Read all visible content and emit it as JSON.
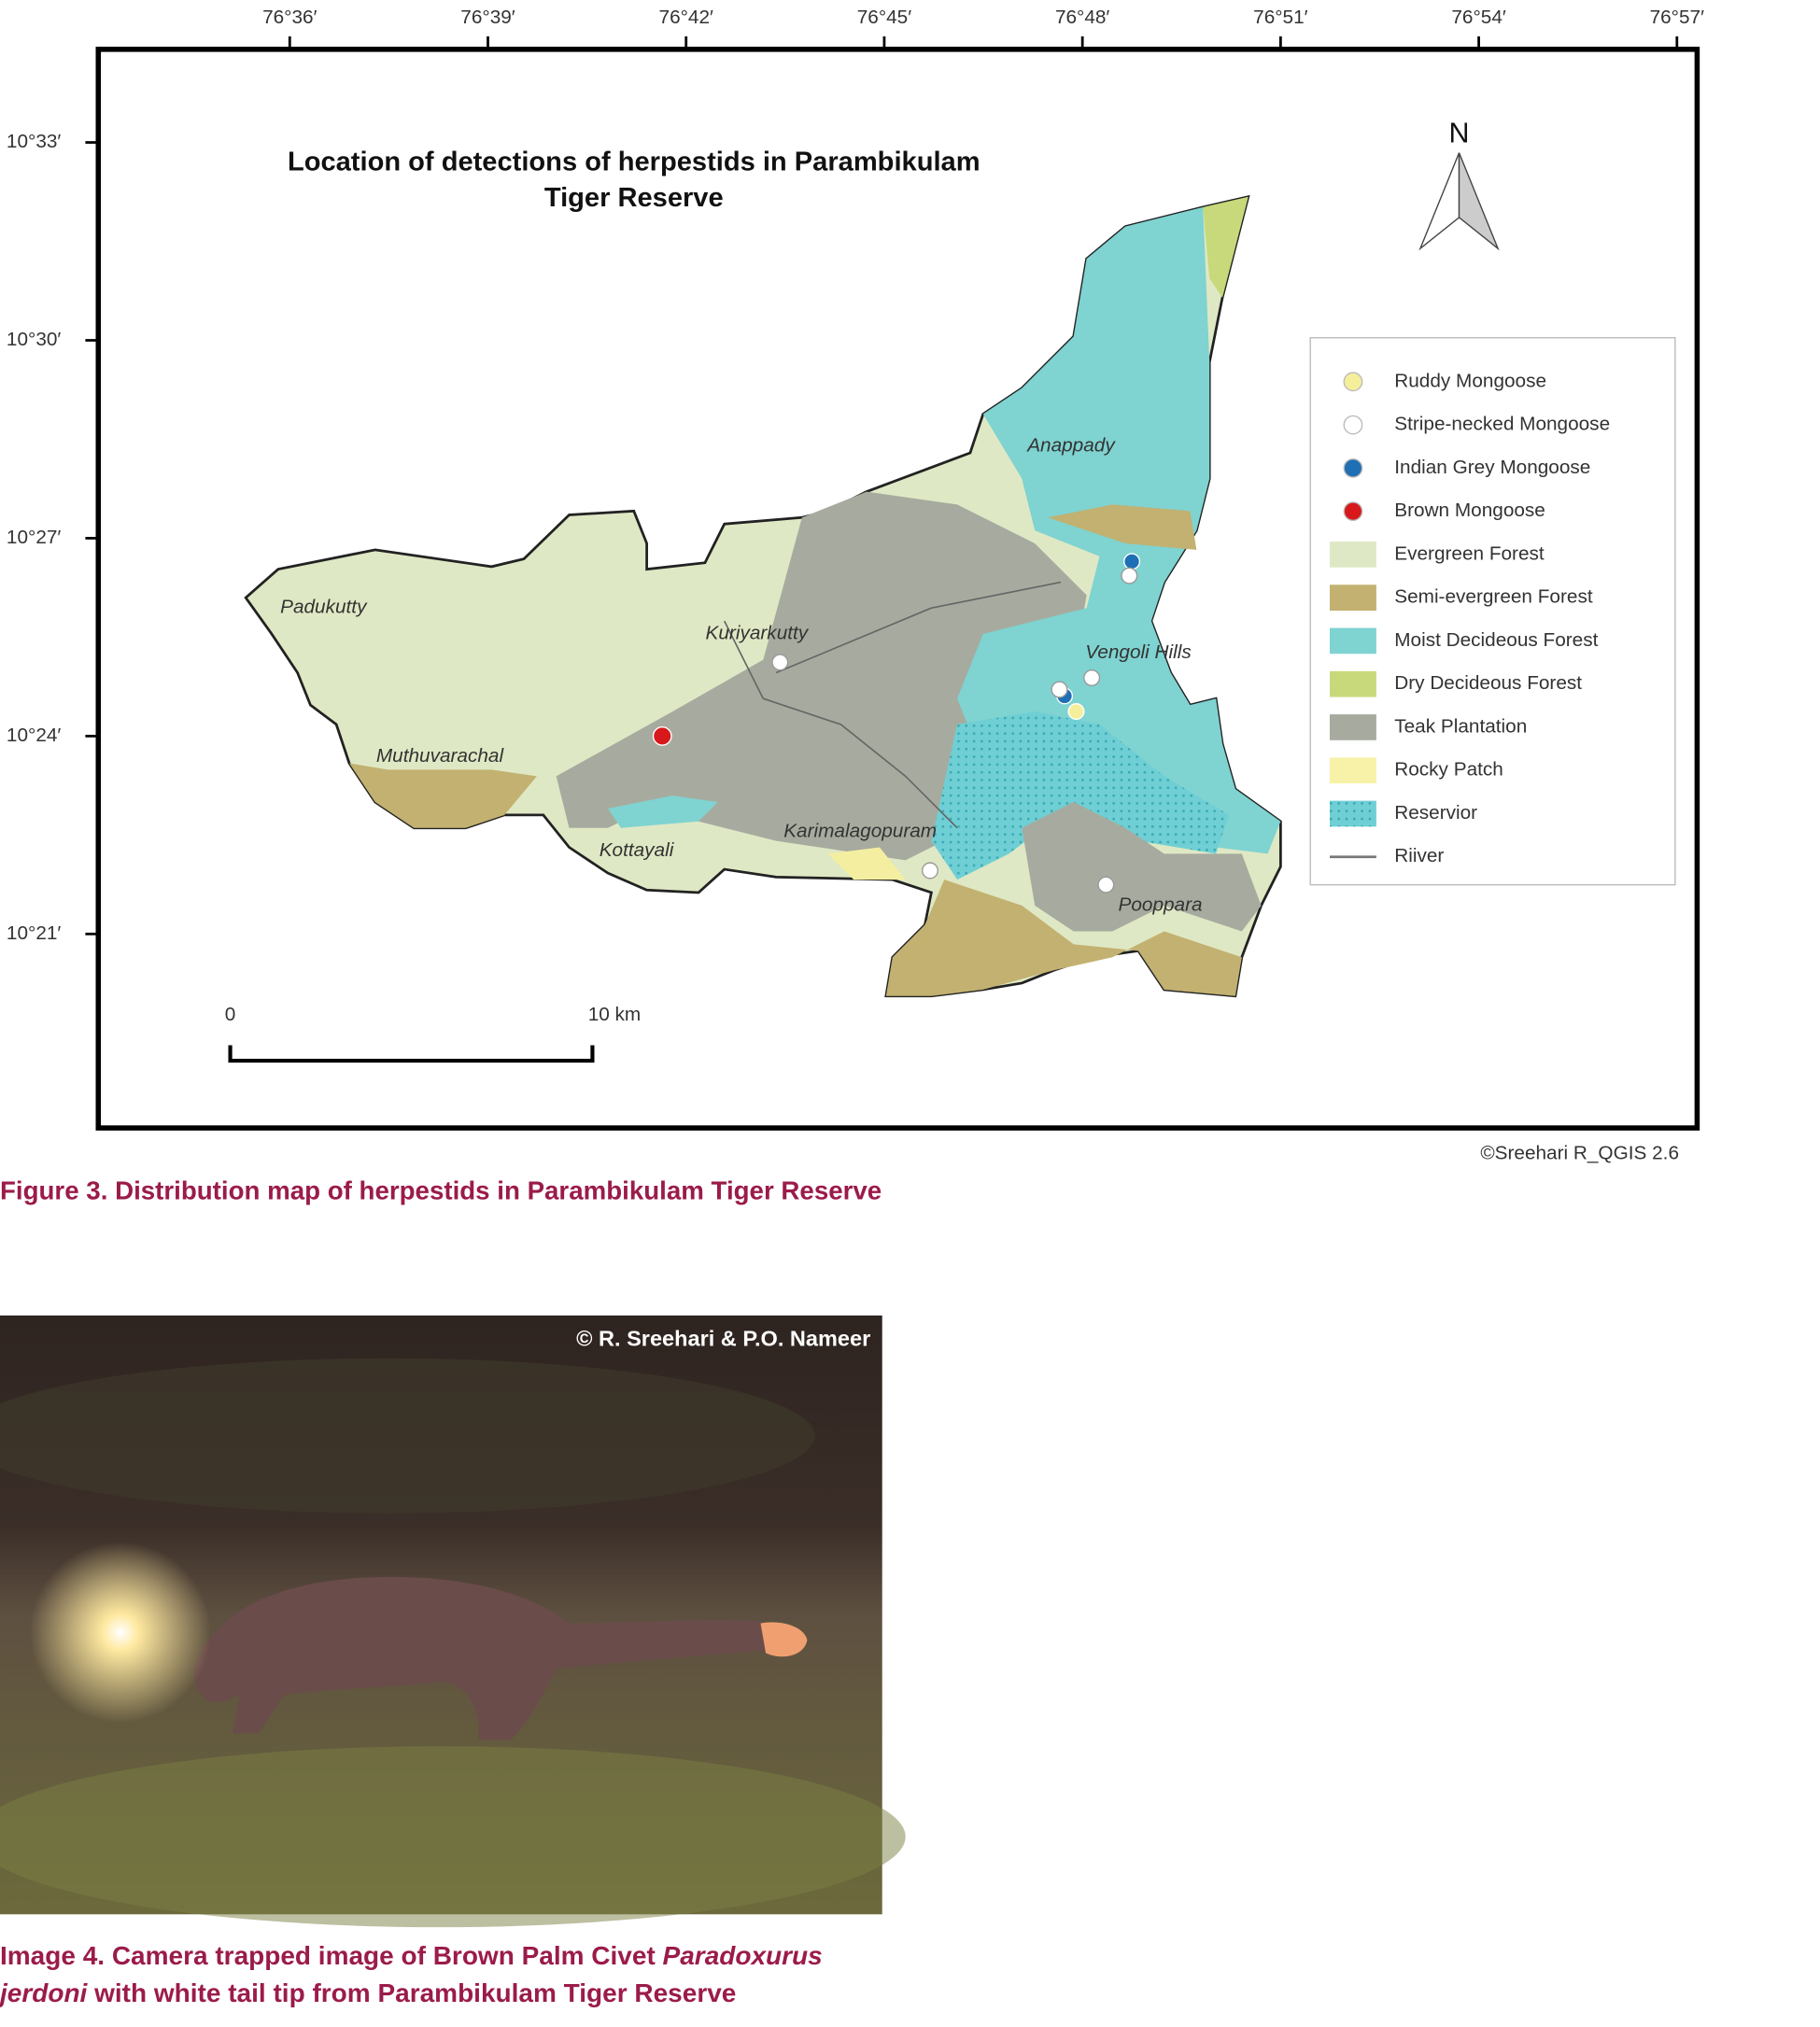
{
  "map": {
    "title_lines": [
      "Location of detections of herpestids in Parambikulam",
      "Tiger Reserve"
    ],
    "longitude_labels": [
      "76°36′",
      "76°39′",
      "76°42′",
      "76°45′",
      "76°48′",
      "76°51′",
      "76°54′",
      "76°57′"
    ],
    "latitude_labels": [
      "10°33′",
      "10°30′",
      "10°27′",
      "10°24′",
      "10°21′"
    ],
    "north": "N",
    "places": [
      "Padukutty",
      "Kuriyarkutty",
      "Anappady",
      "Vengoli Hills",
      "Muthuvarachal",
      "Kottayali",
      "Karimalagopuram",
      "Pooppara"
    ],
    "legend": [
      "Ruddy Mongoose",
      "Stripe-necked Mongoose",
      "Indian Grey Mongoose",
      "Brown Mongoose",
      "Evergreen Forest",
      "Semi-evergreen Forest",
      "Moist Decideous Forest",
      "Dry Decideous Forest",
      "Teak Plantation",
      "Rocky Patch",
      "Reservior",
      "Riiver"
    ],
    "scale": {
      "start": "0",
      "end": "10 km"
    },
    "credit": "©Sreehari R_QGIS 2.6"
  },
  "figure_caption": "Figure 3. Distribution map of herpestids in Parambikulam Tiger Reserve",
  "photo": {
    "credit": "© R. Sreehari & P.O. Nameer"
  },
  "image_caption": {
    "label": "Image 4. Camera trapped image of Brown Palm Civet",
    "species": "Paradoxurus jerdoni",
    "rest": "with white tail tip from Parambikulam Tiger Reserve"
  }
}
